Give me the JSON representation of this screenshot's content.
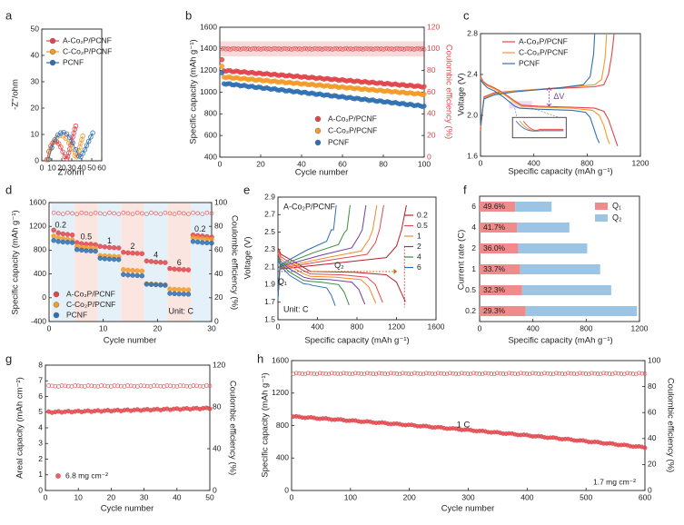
{
  "colors": {
    "A": "#e0454b",
    "C": "#f39a27",
    "P": "#2f6fb1",
    "Q1": "#ef8b8b",
    "Q2": "#9cc4e4",
    "ce": "#e0454b",
    "bandCE": "#f4c0c0",
    "bandBlue": "#e4f1f8",
    "bandPink": "#fbe5e1",
    "rateColors": [
      "#b5212b",
      "#e2494c",
      "#f08a2a",
      "#6f3f9b",
      "#3c8c3c",
      "#2f6fb1"
    ]
  },
  "chart_data": [
    {
      "panel": "a",
      "type": "scatter",
      "xlabel": "Z'/ohm",
      "ylabel": "-Z''/ohm",
      "xlim": [
        0,
        60
      ],
      "ylim": [
        0,
        50
      ],
      "xticks": [
        "0",
        "10",
        "20",
        "30",
        "40",
        "50",
        "60"
      ],
      "yticks": [
        "0",
        "10",
        "20",
        "30",
        "40",
        "50"
      ],
      "legend": [
        "A-Co₂P/PCNF",
        "C-Co₂P/PCNF",
        "PCNF"
      ],
      "series": [
        {
          "name": "A-Co₂P/PCNF",
          "color": "A",
          "x": [
            5,
            7,
            9,
            11,
            13,
            15,
            17,
            19,
            21,
            23,
            25,
            26,
            27,
            28,
            29,
            30,
            31,
            32,
            33,
            34
          ],
          "y": [
            0.4,
            3.5,
            5.6,
            6.8,
            7.3,
            7.2,
            6.5,
            5.2,
            3.4,
            1.6,
            0.8,
            1.5,
            3,
            4.5,
            6,
            7.5,
            9,
            10.5,
            12,
            13.2
          ]
        },
        {
          "name": "C-Co₂P/PCNF",
          "color": "C",
          "x": [
            6,
            9,
            12,
            15,
            18,
            21,
            24,
            27,
            30,
            33,
            35,
            36,
            37,
            38,
            39,
            40,
            41
          ],
          "y": [
            0.4,
            4.5,
            7.2,
            8.9,
            9.5,
            9.4,
            8.5,
            6.8,
            4.5,
            2,
            1.5,
            2.5,
            3.8,
            5.2,
            6.6,
            8,
            9.4
          ]
        },
        {
          "name": "PCNF",
          "color": "P",
          "x": [
            7,
            10,
            13,
            16,
            19,
            22,
            25,
            28,
            31,
            34,
            37,
            39,
            41,
            43,
            45,
            47,
            49,
            51
          ],
          "y": [
            0.5,
            5,
            8,
            9.8,
            10.6,
            10.8,
            10.2,
            8.9,
            6.8,
            4.2,
            1.8,
            1.5,
            2.8,
            4.2,
            5.8,
            7.4,
            9,
            10.6
          ]
        }
      ]
    },
    {
      "panel": "b",
      "type": "scatter",
      "xlabel": "Cycle number",
      "ylabel": "Specific capacity (mAh g⁻¹)",
      "y2label": "Coulombic efficiency (%)",
      "xlim": [
        0,
        100
      ],
      "ylim": [
        400,
        1600
      ],
      "y2lim": [
        0,
        120
      ],
      "xticks": [
        "0",
        "20",
        "40",
        "60",
        "80",
        "100"
      ],
      "yticks": [
        "400",
        "600",
        "800",
        "1000",
        "1200",
        "1400",
        "1600"
      ],
      "y2ticks": [
        "0",
        "20",
        "40",
        "60",
        "80",
        "100",
        "120"
      ],
      "legend": [
        "A-Co₂P/PCNF",
        "C-Co₂P/PCNF",
        "PCNF"
      ],
      "series": [
        {
          "name": "A-Co₂P/PCNF",
          "color": "A",
          "first": 1300,
          "start": 1200,
          "end": 1050
        },
        {
          "name": "C-Co₂P/PCNF",
          "color": "C",
          "first": 1240,
          "start": 1140,
          "end": 980
        },
        {
          "name": "PCNF",
          "color": "P",
          "first": 1180,
          "start": 1080,
          "end": 870
        },
        {
          "name": "Coulombic efficiency",
          "color": "ce",
          "axis": "y2",
          "value": 100
        }
      ]
    },
    {
      "panel": "c",
      "type": "line",
      "xlabel": "Specific capacity (mAh g⁻¹)",
      "ylabel": "Voltage (V)",
      "xlim": [
        0,
        1400
      ],
      "ylim": [
        1.6,
        2.8
      ],
      "xticks": [
        "0",
        "400",
        "800",
        "1200"
      ],
      "yticks": [
        "1.6",
        "2.0",
        "2.4",
        "2.8"
      ],
      "annotation": "ΔV",
      "legend": [
        "A-Co₂P/PCNF",
        "C-Co₂P/PCNF",
        "PCNF"
      ],
      "series": [
        {
          "name": "A-Co₂P/PCNF",
          "color": "A",
          "discharge": [
            [
              0,
              2.38
            ],
            [
              25,
              2.33
            ],
            [
              60,
              2.3
            ],
            [
              120,
              2.27
            ],
            [
              200,
              2.22
            ],
            [
              300,
              2.14
            ],
            [
              360,
              2.1
            ],
            [
              500,
              2.09
            ],
            [
              800,
              2.08
            ],
            [
              1000,
              2.07
            ],
            [
              1080,
              2.04
            ],
            [
              1120,
              1.96
            ],
            [
              1160,
              1.83
            ],
            [
              1200,
              1.7
            ]
          ],
          "charge": [
            [
              0,
              1.85
            ],
            [
              30,
              2.18
            ],
            [
              120,
              2.22
            ],
            [
              300,
              2.24
            ],
            [
              800,
              2.27
            ],
            [
              1000,
              2.28
            ],
            [
              1080,
              2.3
            ],
            [
              1120,
              2.4
            ],
            [
              1150,
              2.6
            ],
            [
              1170,
              2.8
            ]
          ]
        },
        {
          "name": "C-Co₂P/PCNF",
          "color": "C",
          "discharge": [
            [
              0,
              2.37
            ],
            [
              25,
              2.32
            ],
            [
              60,
              2.29
            ],
            [
              120,
              2.26
            ],
            [
              200,
              2.21
            ],
            [
              300,
              2.13
            ],
            [
              360,
              2.09
            ],
            [
              500,
              2.08
            ],
            [
              800,
              2.07
            ],
            [
              980,
              2.05
            ],
            [
              1040,
              2.0
            ],
            [
              1080,
              1.9
            ],
            [
              1110,
              1.78
            ],
            [
              1130,
              1.72
            ]
          ],
          "charge": [
            [
              0,
              1.88
            ],
            [
              30,
              2.17
            ],
            [
              120,
              2.21
            ],
            [
              300,
              2.24
            ],
            [
              800,
              2.28
            ],
            [
              1000,
              2.3
            ],
            [
              1060,
              2.35
            ],
            [
              1090,
              2.55
            ],
            [
              1105,
              2.8
            ]
          ]
        },
        {
          "name": "PCNF",
          "color": "P",
          "discharge": [
            [
              0,
              2.35
            ],
            [
              25,
              2.31
            ],
            [
              60,
              2.27
            ],
            [
              120,
              2.24
            ],
            [
              200,
              2.18
            ],
            [
              300,
              2.09
            ],
            [
              340,
              2.07
            ],
            [
              500,
              2.06
            ],
            [
              800,
              2.05
            ],
            [
              920,
              2.03
            ],
            [
              960,
              1.98
            ],
            [
              990,
              1.88
            ],
            [
              1020,
              1.78
            ],
            [
              1040,
              1.73
            ]
          ],
          "charge": [
            [
              0,
              1.9
            ],
            [
              30,
              2.16
            ],
            [
              120,
              2.2
            ],
            [
              300,
              2.23
            ],
            [
              700,
              2.27
            ],
            [
              900,
              2.3
            ],
            [
              960,
              2.38
            ],
            [
              990,
              2.6
            ],
            [
              1000,
              2.8
            ]
          ]
        }
      ]
    },
    {
      "panel": "d",
      "type": "scatter",
      "xlabel": "Cycle number",
      "ylabel": "Specific capacity (mAh g⁻¹)",
      "y2label": "Coulombic efficiency (%)",
      "xlim": [
        0,
        35
      ],
      "ylim": [
        -400,
        1800
      ],
      "y2lim": [
        0,
        110
      ],
      "xticks": [
        "0",
        "10",
        "20",
        "30"
      ],
      "yticks": [
        "-400",
        "0",
        "400",
        "800",
        "1200",
        "1600"
      ],
      "y2ticks": [
        "0",
        "20",
        "40",
        "60",
        "80",
        "100"
      ],
      "rates": [
        "0.2",
        "0.5",
        "1",
        "2",
        "4",
        "6",
        "0.2"
      ],
      "unit_label": "Unit: C",
      "legend": [
        "A-Co₂P/PCNF",
        "C-Co₂P/PCNF",
        "PCNF"
      ],
      "series": [
        {
          "name": "A-Co₂P/PCNF",
          "color": "A",
          "values": [
            1290,
            1240,
            1220,
            1210,
            1200,
            1060,
            1040,
            1030,
            1030,
            1020,
            990,
            980,
            970,
            965,
            960,
            880,
            870,
            865,
            860,
            855,
            720,
            710,
            700,
            695,
            690,
            580,
            570,
            565,
            560,
            555,
            1200,
            1190,
            1180,
            1170,
            1160
          ]
        },
        {
          "name": "C-Co₂P/PCNF",
          "color": "C",
          "values": [
            1180,
            1150,
            1130,
            1120,
            1110,
            990,
            975,
            965,
            960,
            955,
            820,
            815,
            810,
            805,
            800,
            560,
            550,
            545,
            540,
            535,
            300,
            295,
            290,
            285,
            280,
            200,
            195,
            190,
            188,
            185,
            1150,
            1140,
            1130,
            1125,
            1120
          ]
        },
        {
          "name": "PCNF",
          "color": "P",
          "values": [
            1100,
            1080,
            1070,
            1065,
            1060,
            930,
            920,
            910,
            905,
            900,
            770,
            760,
            755,
            750,
            745,
            470,
            460,
            455,
            450,
            445,
            290,
            285,
            280,
            275,
            270,
            120,
            115,
            110,
            108,
            105,
            1080,
            1070,
            1060,
            1055,
            1050
          ]
        },
        {
          "name": "Coulombic efficiency",
          "color": "ce",
          "axis": "y2",
          "value": 100
        }
      ]
    },
    {
      "panel": "e",
      "type": "line",
      "title": "A-Co₂P/PCNF",
      "xlabel": "Specific capacity (mAh g⁻¹)",
      "ylabel": "Voltage (V)",
      "xlim": [
        0,
        1600
      ],
      "ylim": [
        1.5,
        3.0
      ],
      "xticks": [
        "0",
        "400",
        "800",
        "1200",
        "1600"
      ],
      "yticks": [
        "1.5",
        "1.7",
        "1.9",
        "2.1",
        "2.3",
        "2.5",
        "2.7",
        "2.9"
      ],
      "annotations": [
        "Q₁",
        "Q₂",
        "Unit: C"
      ],
      "rates": [
        "0.2",
        "0.5",
        "1",
        "2",
        "4",
        "6"
      ],
      "capacity": [
        1290,
        1060,
        990,
        880,
        720,
        580
      ],
      "plateau": [
        2.08,
        2.05,
        2.02,
        1.99,
        1.96,
        1.92
      ]
    },
    {
      "panel": "f",
      "type": "bar",
      "orientation": "horizontal",
      "stacked": true,
      "xlabel": "Specific capacity (mAh g⁻¹)",
      "ylabel": "Current rate (C)",
      "xlim": [
        0,
        1300
      ],
      "xticks": [
        "0",
        "400",
        "800",
        "1200"
      ],
      "categories": [
        "6",
        "4",
        "2",
        "1",
        "0.5",
        "0.2"
      ],
      "legend": [
        "Q₁",
        "Q₂"
      ],
      "series": [
        {
          "name": "Q₁",
          "color": "Q1",
          "values": [
            290,
            305,
            315,
            330,
            345,
            375
          ]
        },
        {
          "name": "Q₂",
          "color": "Q2",
          "values": [
            295,
            425,
            560,
            650,
            725,
            905
          ]
        }
      ],
      "labels": [
        "49.6%",
        "41.7%",
        "36.0%",
        "33.7%",
        "32.3%",
        "29.3%"
      ]
    },
    {
      "panel": "g",
      "type": "scatter",
      "xlabel": "Cycle number",
      "ylabel": "Areal capacity (mAh cm⁻²)",
      "y2label": "Coulombic efficiency (%)",
      "xlim": [
        0,
        50
      ],
      "ylim": [
        0,
        8
      ],
      "y2lim": [
        0,
        120
      ],
      "xticks": [
        "0",
        "10",
        "20",
        "30",
        "40",
        "50"
      ],
      "yticks": [
        "0",
        "1",
        "2",
        "3",
        "4",
        "5",
        "6",
        "7",
        "8"
      ],
      "y2ticks": [
        "0",
        "40",
        "80",
        "120"
      ],
      "legend": [
        "6.8 mg cm⁻²"
      ],
      "series": [
        {
          "name": "Areal capacity",
          "color": "A",
          "start": 5.0,
          "end": 5.25,
          "n": 50
        },
        {
          "name": "Coulombic efficiency",
          "color": "ce",
          "axis": "y2",
          "value": 100
        }
      ]
    },
    {
      "panel": "h",
      "type": "scatter",
      "xlabel": "Cycle number",
      "ylabel": "Specific capacity (mAh g⁻¹)",
      "y2label": "Coulombic efficiency (%)",
      "xlim": [
        0,
        600
      ],
      "ylim": [
        0,
        1600
      ],
      "y2lim": [
        0,
        110
      ],
      "xticks": [
        "0",
        "100",
        "200",
        "300",
        "400",
        "500",
        "600"
      ],
      "yticks": [
        "0",
        "400",
        "800",
        "1200",
        "1600"
      ],
      "y2ticks": [
        "0",
        "20",
        "40",
        "60",
        "80",
        "100"
      ],
      "annotations": [
        "1 C",
        "1.7 mg cm⁻²"
      ],
      "series": [
        {
          "name": "Specific capacity",
          "color": "A",
          "start": 910,
          "end": 530,
          "n": 120
        },
        {
          "name": "Coulombic efficiency",
          "color": "ce",
          "axis": "y2",
          "value": 99
        }
      ]
    }
  ]
}
